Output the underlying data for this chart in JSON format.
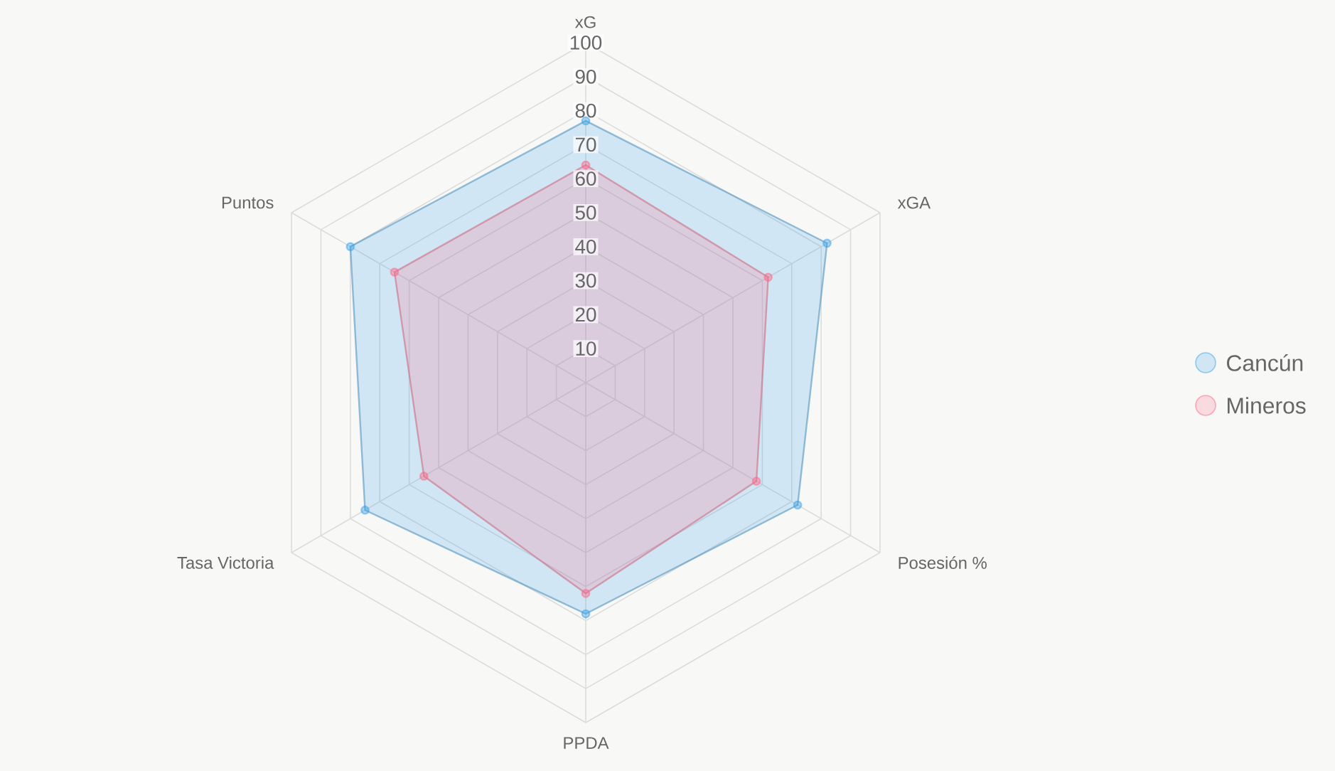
{
  "chart_data": {
    "type": "radar",
    "categories": [
      "xG",
      "xGA",
      "Posesión %",
      "PPDA",
      "Tasa Victoria",
      "Puntos"
    ],
    "series": [
      {
        "name": "Cancún",
        "color": "#36a2eb",
        "values": [
          77,
          82,
          72,
          68,
          75,
          80
        ]
      },
      {
        "name": "Mineros",
        "color": "#ff6384",
        "values": [
          64,
          62,
          58,
          62,
          55,
          65
        ]
      }
    ],
    "ylim": [
      0,
      100
    ],
    "yticks": [
      10,
      20,
      30,
      40,
      50,
      60,
      70,
      80,
      90,
      100
    ],
    "grid": true,
    "legend": "right",
    "marker": "circle"
  }
}
